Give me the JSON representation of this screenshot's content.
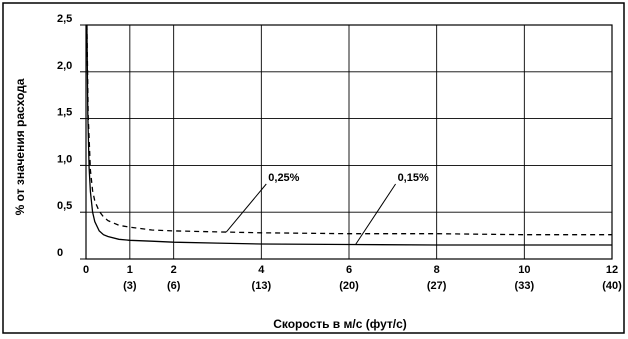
{
  "chart_data": {
    "type": "line",
    "title": "",
    "xlabel": "Скорость в м/с (фут/с)",
    "ylabel": "% от значения расхода",
    "xlim": [
      0,
      12
    ],
    "ylim": [
      0,
      2.5
    ],
    "grid": true,
    "legend": "none",
    "x_ticks": [
      {
        "value": 0,
        "label": "0",
        "sublabel": ""
      },
      {
        "value": 1,
        "label": "1",
        "sublabel": "(3)"
      },
      {
        "value": 2,
        "label": "2",
        "sublabel": "(6)"
      },
      {
        "value": 4,
        "label": "4",
        "sublabel": "(13)"
      },
      {
        "value": 6,
        "label": "6",
        "sublabel": "(20)"
      },
      {
        "value": 8,
        "label": "8",
        "sublabel": "(27)"
      },
      {
        "value": 10,
        "label": "10",
        "sublabel": "(33)"
      },
      {
        "value": 12,
        "label": "12",
        "sublabel": "(40)"
      }
    ],
    "y_ticks": [
      {
        "value": 0,
        "label": "0"
      },
      {
        "value": 0.5,
        "label": "0,5"
      },
      {
        "value": 1.0,
        "label": "1,0"
      },
      {
        "value": 1.5,
        "label": "1,5"
      },
      {
        "value": 2.0,
        "label": "2,0"
      },
      {
        "value": 2.5,
        "label": "2,5"
      }
    ],
    "series": [
      {
        "name": "0,25%",
        "style": "dashed",
        "color": "#000000",
        "x": [
          0.02,
          0.05,
          0.1,
          0.15,
          0.2,
          0.3,
          0.4,
          0.5,
          0.75,
          1,
          1.5,
          2,
          3,
          4,
          6,
          8,
          10,
          12
        ],
        "y": [
          2.5,
          1.53,
          0.95,
          0.73,
          0.62,
          0.51,
          0.45,
          0.41,
          0.36,
          0.34,
          0.31,
          0.3,
          0.29,
          0.28,
          0.27,
          0.27,
          0.26,
          0.26
        ]
      },
      {
        "name": "0,15%",
        "style": "solid",
        "color": "#000000",
        "x": [
          0.02,
          0.04,
          0.07,
          0.1,
          0.15,
          0.2,
          0.3,
          0.4,
          0.5,
          0.75,
          1,
          1.5,
          2,
          3,
          4,
          6,
          8,
          10,
          12
        ],
        "y": [
          2.5,
          1.55,
          0.98,
          0.72,
          0.5,
          0.4,
          0.3,
          0.26,
          0.24,
          0.21,
          0.2,
          0.19,
          0.18,
          0.17,
          0.16,
          0.155,
          0.15,
          0.15,
          0.15
        ]
      }
    ],
    "annotations": [
      {
        "text": "0,25%",
        "series": 0,
        "at_x": 3.2
      },
      {
        "text": "0,15%",
        "series": 1,
        "at_x": 6.15
      }
    ]
  }
}
